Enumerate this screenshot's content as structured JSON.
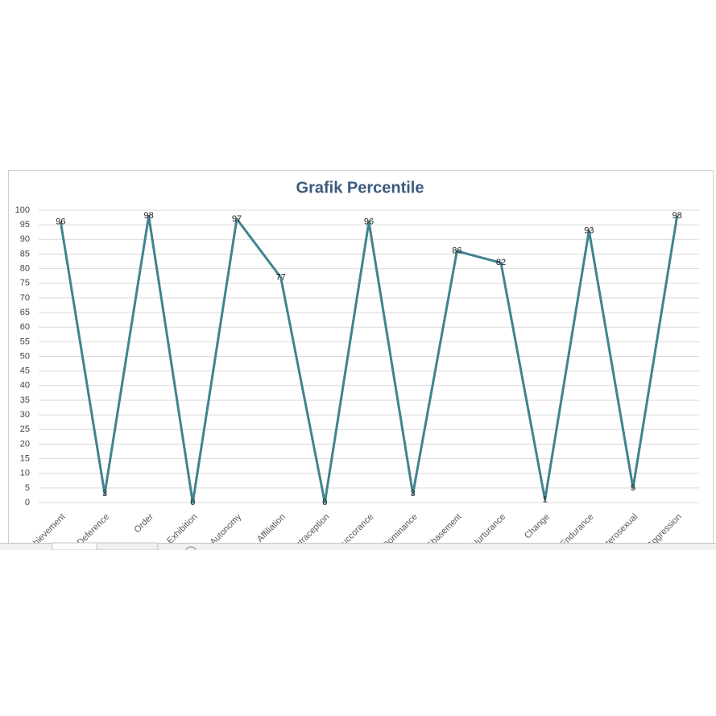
{
  "chart_data": {
    "type": "line",
    "title": "Grafik Percentile",
    "categories": [
      "Achievement",
      "Deference",
      "Order",
      "Exhibition",
      "Autonomy",
      "Affiliation",
      "Intraception",
      "Succorance",
      "Dominance",
      "Abasement",
      "Nurturance",
      "Change",
      "Endurance",
      "Heterosexual",
      "Aggression"
    ],
    "values": [
      96,
      3,
      98,
      0,
      97,
      77,
      0,
      96,
      3,
      86,
      82,
      1,
      93,
      5,
      98
    ],
    "color": "#41838f",
    "ylim": [
      0,
      100
    ],
    "yticks": [
      0,
      5,
      10,
      15,
      20,
      25,
      30,
      35,
      40,
      45,
      50,
      55,
      60,
      65,
      70,
      75,
      80,
      85,
      90,
      95,
      100
    ],
    "grid": true
  }
}
